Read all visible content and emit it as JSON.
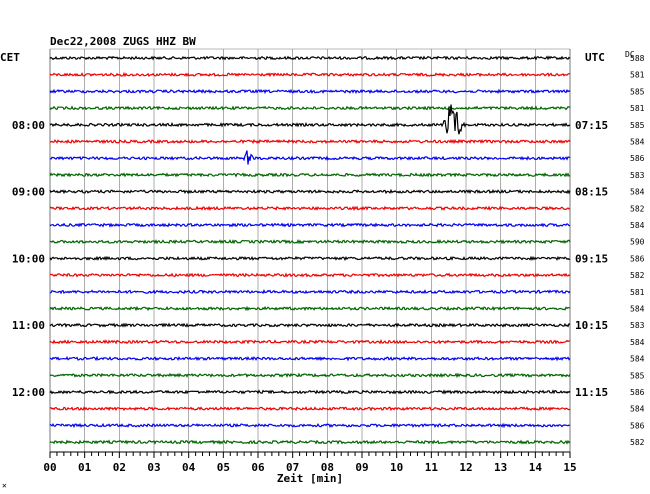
{
  "header": {
    "title": "Dec22,2008  ZUGS HHZ BW",
    "left_label": "CET",
    "right_label": "UTC",
    "dc_label": "DC",
    "corner_mark": "✕"
  },
  "chart_data": {
    "type": "line",
    "title": "Dec22,2008  ZUGS HHZ BW",
    "xlabel": "Zeit [min]",
    "x_ticks": [
      "00",
      "01",
      "02",
      "03",
      "04",
      "05",
      "06",
      "07",
      "08",
      "09",
      "10",
      "11",
      "12",
      "13",
      "14",
      "15"
    ],
    "xlim": [
      0,
      15
    ],
    "left_time_labels": [
      "08:00",
      "09:00",
      "10:00",
      "11:00",
      "12:00"
    ],
    "right_time_labels": [
      "07:15",
      "08:15",
      "09:15",
      "10:15",
      "11:15"
    ],
    "trace_colors": [
      "#000000",
      "#ee0000",
      "#0000ee",
      "#006400"
    ],
    "traces": [
      {
        "dc": "588"
      },
      {
        "dc": "581"
      },
      {
        "dc": "585"
      },
      {
        "dc": "581"
      },
      {
        "dc": "585",
        "event": {
          "minute": 11.6,
          "amplitude": "large"
        }
      },
      {
        "dc": "584"
      },
      {
        "dc": "586",
        "event": {
          "minute": 5.7,
          "amplitude": "medium"
        }
      },
      {
        "dc": "583"
      },
      {
        "dc": "584"
      },
      {
        "dc": "582"
      },
      {
        "dc": "584"
      },
      {
        "dc": "590"
      },
      {
        "dc": "586"
      },
      {
        "dc": "582"
      },
      {
        "dc": "581"
      },
      {
        "dc": "584"
      },
      {
        "dc": "583"
      },
      {
        "dc": "584"
      },
      {
        "dc": "584"
      },
      {
        "dc": "585"
      },
      {
        "dc": "586"
      },
      {
        "dc": "584"
      },
      {
        "dc": "586"
      },
      {
        "dc": "582"
      }
    ],
    "grid": true
  }
}
